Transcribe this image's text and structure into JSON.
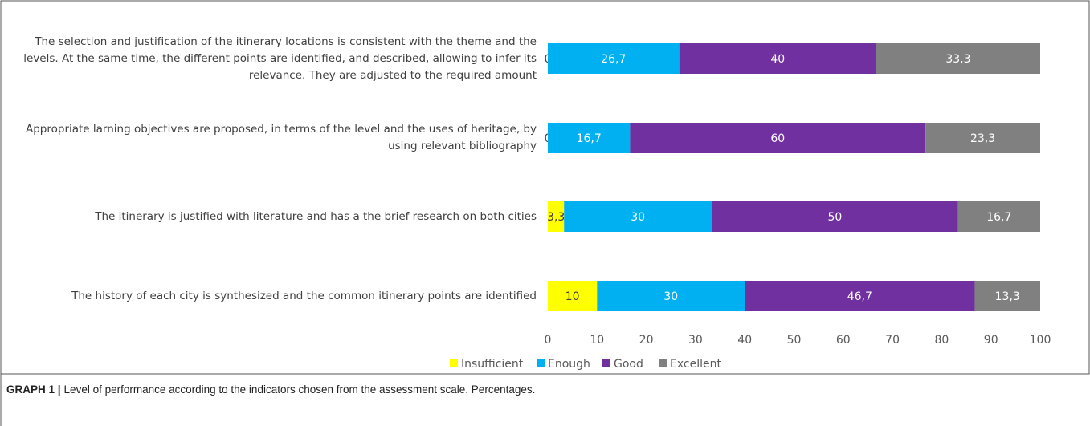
{
  "chart_data": {
    "type": "stacked-barh",
    "categories": [
      "The selection and justification of the itinerary locations is consistent with the theme and the levels. At the same time, the different points are identified, and described, allowing to infer its relevance. They are adjusted to the required amount",
      "Appropriate larning objectives are proposed, in terms of the level and the uses of heritage, by using relevant bibliography",
      "The itinerary is justified with literature and has a the brief research  on both cities",
      "The history of each city is synthesized and the common itinerary points are identified"
    ],
    "series": [
      {
        "name": "Insufficient",
        "color": "#ffff00",
        "values": [
          0,
          0,
          3.3,
          10
        ],
        "value_labels": [
          "0",
          "0",
          "3,3",
          "10"
        ]
      },
      {
        "name": "Enough",
        "color": "#00b0f0",
        "values": [
          26.7,
          16.7,
          30,
          30
        ],
        "value_labels": [
          "26,7",
          "16,7",
          "30",
          "30"
        ]
      },
      {
        "name": "Good",
        "color": "#7030a0",
        "values": [
          40,
          60,
          50,
          46.7
        ],
        "value_labels": [
          "40",
          "60",
          "50",
          "46,7"
        ]
      },
      {
        "name": "Excellent",
        "color": "#808080",
        "values": [
          33.3,
          23.3,
          16.7,
          13.3
        ],
        "value_labels": [
          "33,3",
          "23,3",
          "16,7",
          "13,3"
        ]
      }
    ],
    "xlim": [
      0,
      100
    ],
    "xticks": [
      0,
      10,
      20,
      30,
      40,
      50,
      60,
      70,
      80,
      90,
      100
    ],
    "legend": "bottom",
    "caption_label": "GRAPH 1 |",
    "caption": "Level of performance according to the indicators chosen from the assessment scale. Percentages."
  }
}
